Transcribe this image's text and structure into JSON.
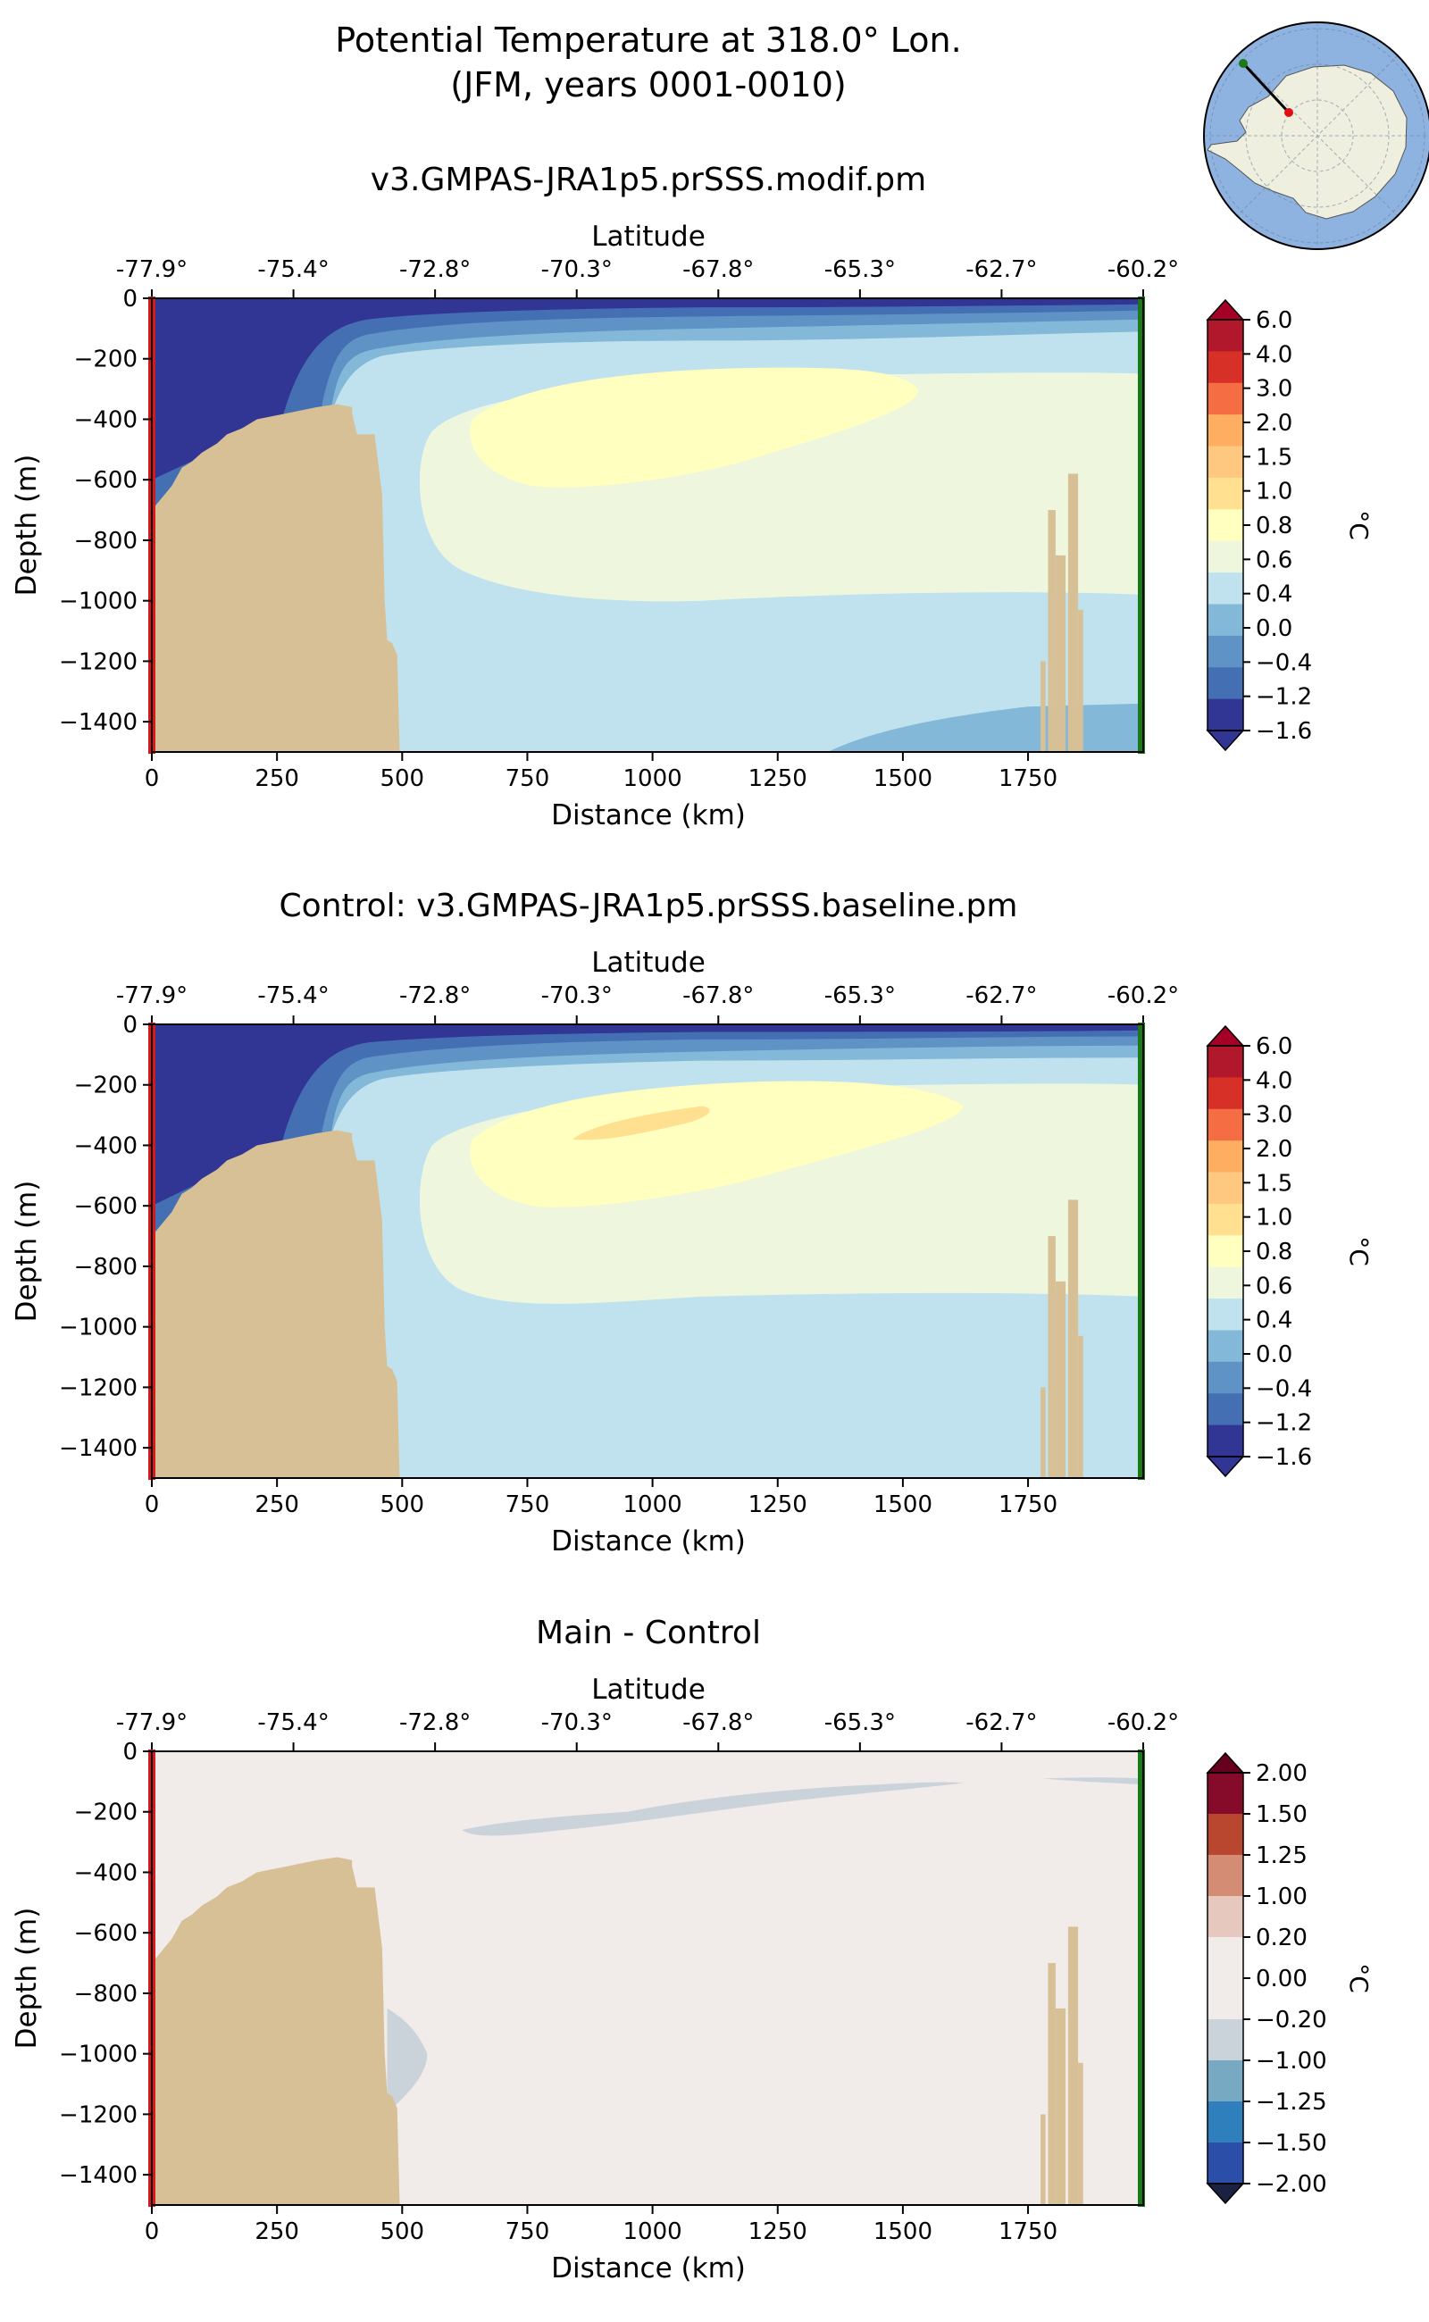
{
  "figure": {
    "title_line1": "Potential Temperature at 318.0° Lon.",
    "title_line2": "(JFM, years 0001-0010)"
  },
  "colors": {
    "bathymetry": "#d8c096",
    "start_marker": "#d7191c",
    "end_marker": "#1a7a1a",
    "ocean_map": "#8fb3e0",
    "land_map": "#efefdf"
  },
  "chart_data": [
    {
      "type": "contourf",
      "title": "v3.GMPAS-JRA1p5.prSSS.modif.pm",
      "xlabel": "Distance (km)",
      "ylabel": "Depth (m)",
      "top_xlabel": "Latitude",
      "xlim": [
        0,
        1980
      ],
      "ylim": [
        -1500,
        0
      ],
      "xticks": [
        "0",
        "250",
        "500",
        "750",
        "1000",
        "1250",
        "1500",
        "1750"
      ],
      "yticks": [
        "0",
        "−200",
        "−400",
        "−600",
        "−800",
        "−1000",
        "−1200",
        "−1400"
      ],
      "lat_ticks": [
        "-77.9°",
        "-75.4°",
        "-72.8°",
        "-70.3°",
        "-67.8°",
        "-65.3°",
        "-62.7°",
        "-60.2°"
      ],
      "colorbar_label": "°C",
      "colorbar_levels": [
        "6.0",
        "4.0",
        "3.0",
        "2.0",
        "1.5",
        "1.0",
        "0.8",
        "0.6",
        "0.4",
        "0.0",
        "−0.4",
        "−1.2",
        "−1.6"
      ],
      "colorbar_colors": [
        "#b2182b",
        "#d73027",
        "#f46d43",
        "#fdae61",
        "#fec880",
        "#fee090",
        "#ffffbf",
        "#eef7de",
        "#bfe2ee",
        "#83b8d8",
        "#5f93c6",
        "#4470b3",
        "#313695"
      ],
      "extend_colors": [
        "#a50026",
        "#313695"
      ]
    },
    {
      "type": "contourf",
      "title": "Control: v3.GMPAS-JRA1p5.prSSS.baseline.pm",
      "xlabel": "Distance (km)",
      "ylabel": "Depth (m)",
      "top_xlabel": "Latitude",
      "xlim": [
        0,
        1980
      ],
      "ylim": [
        -1500,
        0
      ],
      "xticks": [
        "0",
        "250",
        "500",
        "750",
        "1000",
        "1250",
        "1500",
        "1750"
      ],
      "yticks": [
        "0",
        "−200",
        "−400",
        "−600",
        "−800",
        "−1000",
        "−1200",
        "−1400"
      ],
      "lat_ticks": [
        "-77.9°",
        "-75.4°",
        "-72.8°",
        "-70.3°",
        "-67.8°",
        "-65.3°",
        "-62.7°",
        "-60.2°"
      ],
      "colorbar_label": "°C",
      "colorbar_levels": [
        "6.0",
        "4.0",
        "3.0",
        "2.0",
        "1.5",
        "1.0",
        "0.8",
        "0.6",
        "0.4",
        "0.0",
        "−0.4",
        "−1.2",
        "−1.6"
      ],
      "colorbar_colors": [
        "#b2182b",
        "#d73027",
        "#f46d43",
        "#fdae61",
        "#fec880",
        "#fee090",
        "#ffffbf",
        "#eef7de",
        "#bfe2ee",
        "#83b8d8",
        "#5f93c6",
        "#4470b3",
        "#313695"
      ],
      "extend_colors": [
        "#a50026",
        "#313695"
      ]
    },
    {
      "type": "contourf",
      "title": "Main - Control",
      "xlabel": "Distance (km)",
      "ylabel": "Depth (m)",
      "top_xlabel": "Latitude",
      "xlim": [
        0,
        1980
      ],
      "ylim": [
        -1500,
        0
      ],
      "xticks": [
        "0",
        "250",
        "500",
        "750",
        "1000",
        "1250",
        "1500",
        "1750"
      ],
      "yticks": [
        "0",
        "−200",
        "−400",
        "−600",
        "−800",
        "−1000",
        "−1200",
        "−1400"
      ],
      "lat_ticks": [
        "-77.9°",
        "-75.4°",
        "-72.8°",
        "-70.3°",
        "-67.8°",
        "-65.3°",
        "-62.7°",
        "-60.2°"
      ],
      "colorbar_label": "°C",
      "colorbar_levels": [
        "2.00",
        "1.50",
        "1.25",
        "1.00",
        "0.20",
        "0.00",
        "−0.20",
        "−1.00",
        "−1.25",
        "−1.50",
        "−2.00"
      ],
      "colorbar_colors": [
        "#860a29",
        "#b9462f",
        "#d48d74",
        "#e7c8be",
        "#f1ebea",
        "#f1ebea",
        "#c9d3d9",
        "#77a9c3",
        "#2f7fbc",
        "#2b4fa8"
      ],
      "extend_colors": [
        "#67001f",
        "#1b2140"
      ]
    }
  ]
}
